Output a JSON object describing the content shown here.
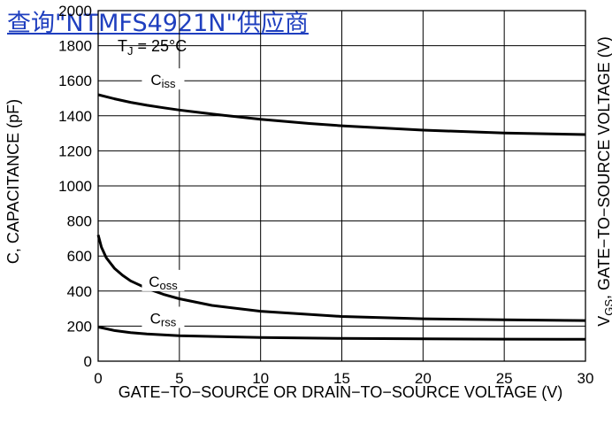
{
  "overlay_link": {
    "text": "查询\"NTMFS4921N\"供应商",
    "color": "#1f3fbf"
  },
  "chart_data": {
    "type": "line",
    "title": "",
    "xlabel": "GATE−TO−SOURCE OR DRAIN−TO−SOURCE VOLTAGE (V)",
    "ylabel": "C, CAPACITANCE (pF)",
    "y2label": {
      "main": "V",
      "sub": "GS",
      "rest": ", GATE−TO−SOURCE VOLTAGE (V)"
    },
    "xlim": [
      0,
      30
    ],
    "ylim": [
      0,
      2000
    ],
    "grid": true,
    "x_ticks": [
      "0",
      "5",
      "10",
      "15",
      "20",
      "25",
      "30"
    ],
    "y_ticks": [
      "0",
      "200",
      "400",
      "600",
      "800",
      "1000",
      "1200",
      "1400",
      "1600",
      "1800",
      "2000"
    ],
    "condition": {
      "main": "T",
      "sub": "J",
      "rest": " = 25°C"
    },
    "series": [
      {
        "name": "Ciss",
        "main": "C",
        "sub": "iss",
        "x": [
          0,
          1,
          2,
          3,
          4,
          5,
          7,
          10,
          13,
          15,
          20,
          25,
          30
        ],
        "y": [
          1520,
          1497,
          1477,
          1460,
          1446,
          1433,
          1410,
          1380,
          1356,
          1343,
          1318,
          1302,
          1293
        ]
      },
      {
        "name": "Coss",
        "main": "C",
        "sub": "oss",
        "x": [
          0,
          0.2,
          0.5,
          1,
          1.5,
          2,
          3,
          4,
          5,
          7,
          10,
          15,
          20,
          25,
          30
        ],
        "y": [
          720,
          650,
          590,
          530,
          490,
          458,
          415,
          382,
          356,
          318,
          285,
          255,
          242,
          236,
          232
        ]
      },
      {
        "name": "Crss",
        "main": "C",
        "sub": "rss",
        "x": [
          0,
          1,
          2,
          3,
          5,
          10,
          15,
          20,
          25,
          30
        ],
        "y": [
          195,
          175,
          163,
          155,
          145,
          135,
          130,
          128,
          126,
          125
        ]
      }
    ],
    "line_color": "#000000"
  }
}
